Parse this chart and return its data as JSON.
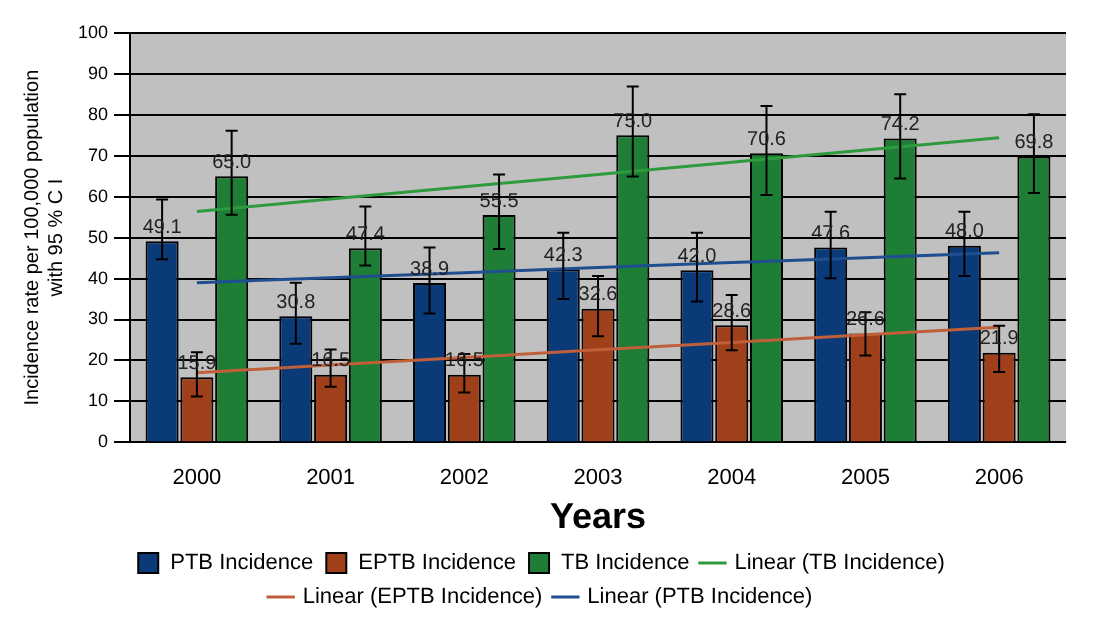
{
  "chart_data": {
    "type": "bar",
    "xlabel": "Years",
    "ylabel": "Incidence rate per 100,000 population with 95 % C I",
    "categories": [
      "2000",
      "2001",
      "2002",
      "2003",
      "2004",
      "2005",
      "2006"
    ],
    "series": [
      {
        "name": "PTB Incidence",
        "color": "#0b3a78",
        "values": [
          49.1,
          30.8,
          38.9,
          42.3,
          42.0,
          47.6,
          48.0
        ],
        "value_labels": [
          "49.1",
          "30.8",
          "38.9",
          "42.3",
          "42.0",
          "47.6",
          "48.0"
        ],
        "errors": [
          [
            44.7,
            59.3
          ],
          [
            24.1,
            39.0
          ],
          [
            31.5,
            47.6
          ],
          [
            35.0,
            51.2
          ],
          [
            34.4,
            51.2
          ],
          [
            40.1,
            56.3
          ],
          [
            40.6,
            56.3
          ]
        ]
      },
      {
        "name": "EPTB Incidence",
        "color": "#a0401a",
        "values": [
          15.9,
          16.5,
          16.5,
          32.6,
          28.6,
          26.6,
          21.9
        ],
        "value_labels": [
          "15.9",
          "16.5",
          "16.5",
          "32.6",
          "28.6",
          "26.6",
          "21.9"
        ],
        "errors": [
          [
            11.2,
            22.0
          ],
          [
            13.6,
            22.7
          ],
          [
            12.2,
            21.6
          ],
          [
            25.9,
            40.6
          ],
          [
            22.5,
            36.0
          ],
          [
            21.2,
            31.8
          ],
          [
            17.2,
            28.5
          ]
        ]
      },
      {
        "name": "TB Incidence",
        "color": "#1e7e35",
        "values": [
          65.0,
          47.4,
          55.5,
          75.0,
          70.6,
          74.2,
          69.8
        ],
        "value_labels": [
          "65.0",
          "47.4",
          "55.5",
          "75.0",
          "70.6",
          "74.2",
          "69.8"
        ],
        "errors": [
          [
            55.6,
            76.1
          ],
          [
            43.2,
            57.6
          ],
          [
            47.2,
            65.4
          ],
          [
            64.9,
            86.9
          ],
          [
            60.4,
            82.1
          ],
          [
            64.4,
            85.0
          ],
          [
            60.9,
            80.1
          ]
        ]
      },
      {
        "name": "Linear (TB Incidence)",
        "type": "line",
        "color": "#2e9a3e",
        "values": [
          56.4,
          59.4,
          62.4,
          65.4,
          68.4,
          71.4,
          74.4
        ]
      },
      {
        "name": "Linear (EPTB Incidence)",
        "type": "line",
        "color": "#c0603a",
        "values": [
          17.0,
          18.9,
          20.7,
          22.6,
          24.4,
          26.3,
          28.1
        ]
      },
      {
        "name": "Linear (PTB Incidence)",
        "type": "line",
        "color": "#1f4f90",
        "values": [
          39.0,
          40.2,
          41.4,
          42.7,
          43.9,
          45.1,
          46.3
        ]
      }
    ],
    "ylim": [
      0,
      100
    ],
    "yticks": [
      0,
      10,
      20,
      30,
      40,
      50,
      60,
      70,
      80,
      90,
      100
    ],
    "grid": "y",
    "legend": "bottom",
    "marker": "none"
  }
}
